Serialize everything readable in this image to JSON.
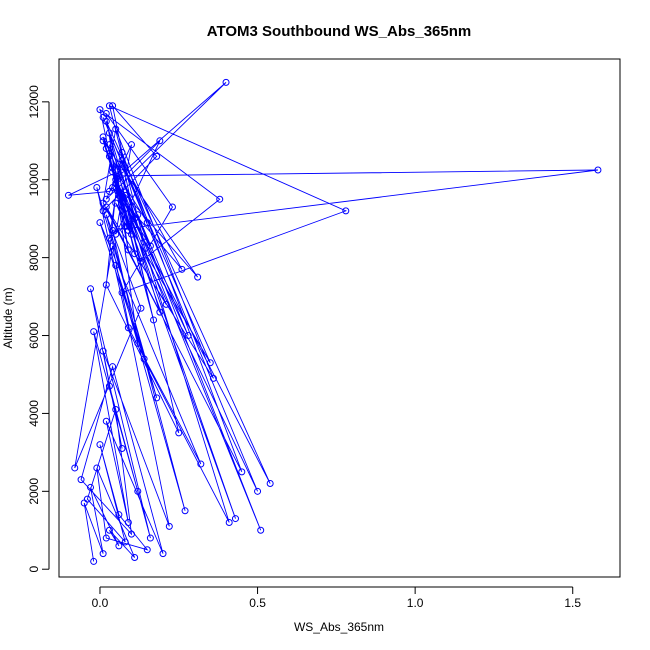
{
  "chart_data": {
    "type": "line",
    "title": "ATOM3 Southbound WS_Abs_365nm",
    "xlabel": "WS_Abs_365nm",
    "ylabel": "Altitude (m)",
    "xlim": [
      -0.13,
      1.65
    ],
    "ylim": [
      -200,
      13100
    ],
    "x_ticks": [
      0,
      0.5,
      1,
      1.5
    ],
    "x_tick_labels": [
      "0.0",
      "0.5",
      "1.0",
      "1.5"
    ],
    "y_ticks": [
      0,
      2000,
      4000,
      6000,
      8000,
      10000,
      12000
    ],
    "y_tick_labels": [
      "0",
      "2000",
      "4000",
      "6000",
      "8000",
      "10000",
      "12000"
    ],
    "color": "#0000ff",
    "marker": "open-circle",
    "grid": false,
    "series": [
      {
        "x": [
          -0.02,
          -0.05,
          0.01,
          -0.03,
          0.06,
          0.03,
          0.11,
          -0.01,
          0.02,
          0.15,
          0.06,
          0.0,
          0.08,
          -0.04,
          0.05,
          0.1,
          -0.06,
          0.04,
          0.2,
          0.02,
          0.09,
          -0.02,
          0.12,
          0.03,
          0.16,
          -0.03,
          0.07,
          0.01,
          0.22,
          0.04,
          -0.08,
          0.13,
          0.02,
          0.27,
          0.05,
          0.18,
          -0.01,
          0.09,
          0.32,
          0.0,
          0.14,
          0.41,
          0.06,
          0.02,
          0.25,
          0.08,
          0.51,
          0.03,
          0.11,
          0.36,
          0.05,
          0.01,
          0.19,
          0.06,
          1.58,
          0.04,
          0.12,
          0.02,
          0.23,
          0.07,
          0.78,
          0.03,
          0.14,
          0.05,
          0.31,
          0.01,
          0.1,
          0.04,
          0.17,
          0.02,
          0.54,
          0.06,
          0.09,
          0.03,
          0.13,
          0.38,
          0.0,
          0.08,
          0.05,
          0.21,
          0.02,
          0.45,
          0.07,
          0.03,
          0.12,
          0.28,
          0.04,
          0.01,
          0.16,
          0.06,
          0.43,
          0.02,
          0.09,
          0.05,
          0.35,
          0.03,
          0.11,
          0.07,
          0.26,
          0.04,
          0.5,
          0.01,
          0.15,
          0.06,
          0.4,
          0.02,
          0.1,
          0.05,
          0.19,
          0.03,
          -0.1,
          0.08,
          0.04,
          0.18,
          0.01
        ],
        "y": [
          200,
          1700,
          400,
          2100,
          600,
          1000,
          300,
          2600,
          800,
          500,
          1400,
          3200,
          700,
          1800,
          4100,
          900,
          2300,
          5200,
          400,
          3800,
          1200,
          6100,
          2000,
          4700,
          800,
          7200,
          3100,
          5600,
          1100,
          8300,
          2600,
          6700,
          9100,
          1500,
          7800,
          4400,
          9800,
          6200,
          2700,
          8900,
          5400,
          1200,
          10400,
          7300,
          3500,
          9600,
          1000,
          10900,
          8100,
          4900,
          11300,
          9400,
          6600,
          10100,
          10250,
          8700,
          5800,
          11700,
          9300,
          7100,
          9200,
          11900,
          8400,
          9900,
          7500,
          11000,
          8600,
          10300,
          6400,
          11500,
          2200,
          9700,
          8200,
          10600,
          7900,
          9500,
          11800,
          8800,
          10000,
          6800,
          9300,
          2500,
          10700,
          8500,
          9100,
          6000,
          10200,
          11100,
          8300,
          9600,
          1300,
          10800,
          8700,
          9400,
          5300,
          11200,
          9000,
          10500,
          7700,
          9800,
          2000,
          11600,
          8900,
          10100,
          12500,
          9500,
          10900,
          8600,
          11000,
          9700,
          9600,
          10300,
          11900,
          10600,
          9200
        ]
      }
    ]
  }
}
